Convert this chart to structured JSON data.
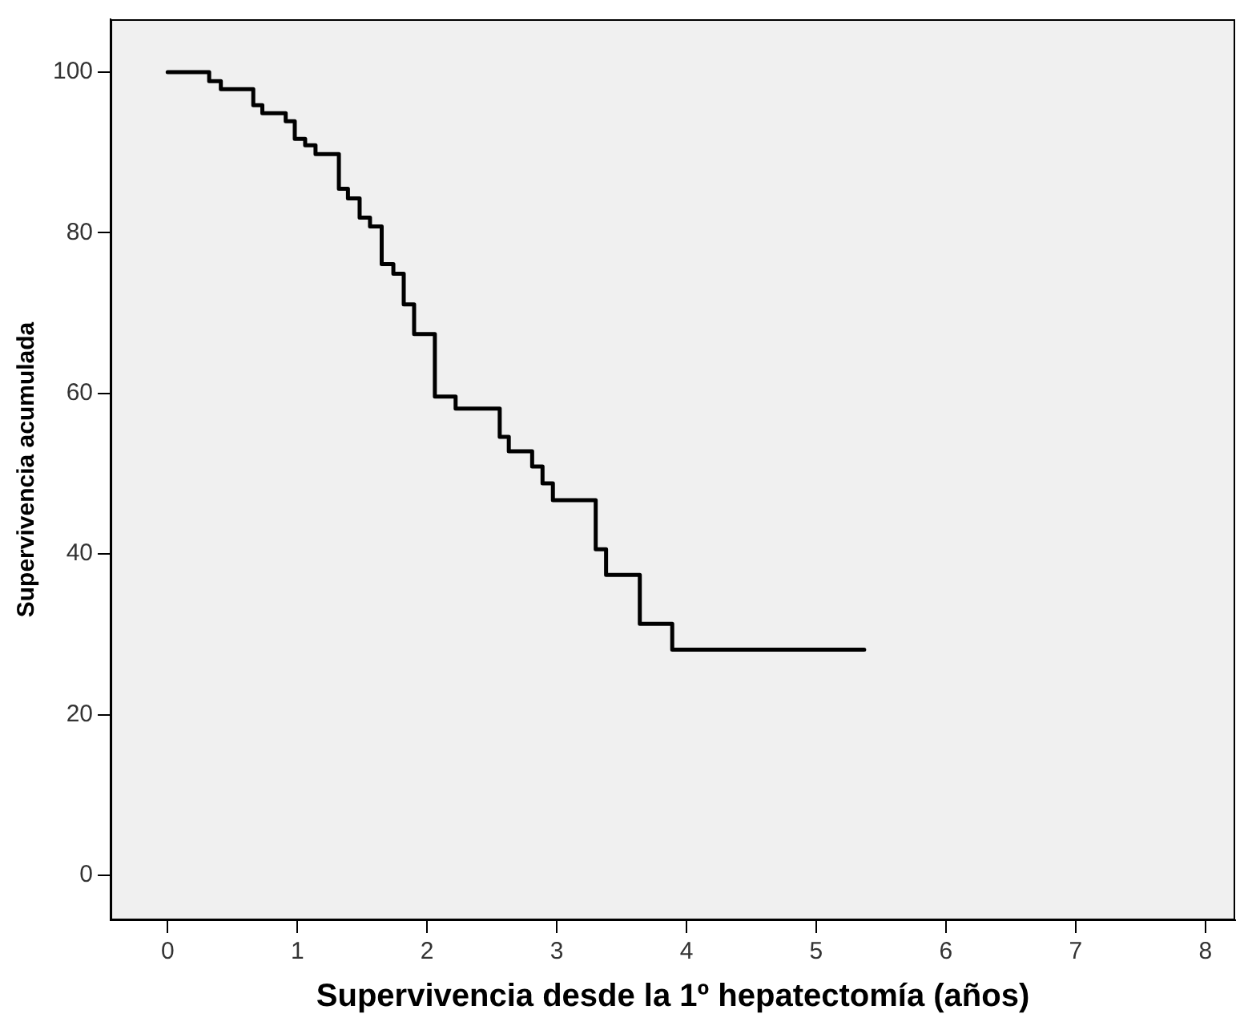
{
  "chart_data": {
    "type": "step",
    "xlabel": "Supervivencia desde la 1º hepatectomía (años)",
    "ylabel": "Supervivencia acumulada",
    "xlim": [
      -0.44,
      8.23
    ],
    "xticks": [
      0,
      1,
      2,
      3,
      4,
      5,
      6,
      7,
      8
    ],
    "ylim": [
      -5.6,
      106.6
    ],
    "yticks": [
      0,
      20,
      40,
      60,
      80,
      100
    ],
    "grid": false,
    "legend": false,
    "series": [
      {
        "color": "#000000",
        "line_style": "solid",
        "marker": "none",
        "x": [
          0,
          0.32,
          0.41,
          0.66,
          0.73,
          0.91,
          0.98,
          1.06,
          1.14,
          1.32,
          1.39,
          1.48,
          1.56,
          1.65,
          1.74,
          1.82,
          1.9,
          2.06,
          2.22,
          2.56,
          2.63,
          2.81,
          2.89,
          2.97,
          3.3,
          3.38,
          3.64,
          3.89,
          5.37
        ],
        "values": [
          100,
          98.9,
          97.9,
          95.9,
          94.9,
          93.9,
          91.7,
          90.9,
          89.8,
          85.5,
          84.3,
          81.9,
          80.8,
          76.1,
          74.9,
          71.1,
          67.4,
          59.6,
          58.1,
          54.6,
          52.8,
          50.9,
          48.8,
          46.7,
          40.6,
          37.4,
          31.3,
          28.1,
          28.1
        ]
      }
    ]
  }
}
